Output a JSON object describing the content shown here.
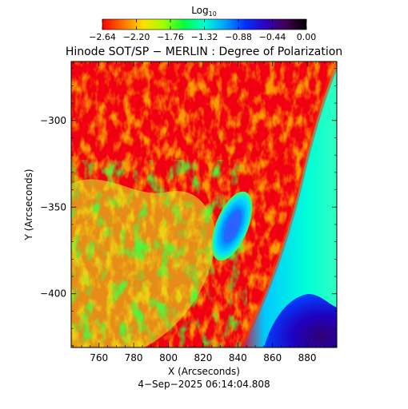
{
  "colorbar": {
    "label_base": "Log",
    "label_subscript": "10",
    "tick_labels": [
      "−2.64",
      "−2.20",
      "−1.76",
      "−1.32",
      "−0.88",
      "−0.44",
      "0.00"
    ],
    "colors": [
      "#ff0000",
      "#ff7000",
      "#ffe000",
      "#a0ff00",
      "#00ff40",
      "#00ffd0",
      "#00a0ff",
      "#0030ff",
      "#3000c0",
      "#400050",
      "#000000"
    ]
  },
  "title": "Hinode SOT/SP − MERLIN : Degree of Polarization",
  "axes": {
    "xlabel": "X (Arcseconds)",
    "ylabel": "Y (Arcseconds)",
    "xticks": [
      {
        "value": 760,
        "label": "760"
      },
      {
        "value": 780,
        "label": "780"
      },
      {
        "value": 800,
        "label": "800"
      },
      {
        "value": 820,
        "label": "820"
      },
      {
        "value": 840,
        "label": "840"
      },
      {
        "value": 860,
        "label": "860"
      },
      {
        "value": 880,
        "label": "880"
      }
    ],
    "yticks": [
      {
        "value": -300,
        "label": "−300"
      },
      {
        "value": -350,
        "label": "−350"
      },
      {
        "value": -400,
        "label": "−400"
      }
    ],
    "xrange": [
      744,
      897
    ],
    "yrange": [
      -431,
      -266
    ]
  },
  "timestamp": "4−Sep−2025 06:14:04.808"
}
